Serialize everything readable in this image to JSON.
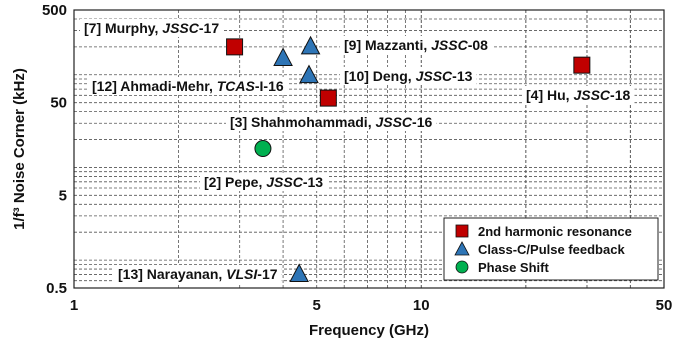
{
  "chart_data": {
    "type": "scatter",
    "title": "",
    "xlabel": "Frequency (GHz)",
    "ylabel": "1/f³ Noise Corner (kHz)",
    "x_scale": "log",
    "y_scale": "log",
    "xlim": [
      1,
      50
    ],
    "ylim": [
      0.5,
      500
    ],
    "x_ticks": [
      {
        "value": 1,
        "label": "1"
      },
      {
        "value": 5,
        "label": "5"
      },
      {
        "value": 10,
        "label": "10"
      },
      {
        "value": 50,
        "label": "50"
      }
    ],
    "y_ticks": [
      {
        "value": 0.5,
        "label": "0.5"
      },
      {
        "value": 5,
        "label": "5"
      },
      {
        "value": 50,
        "label": "50"
      },
      {
        "value": 500,
        "label": "500"
      }
    ],
    "grid": true,
    "legend_position": "bottom-right",
    "series": [
      {
        "name": "2nd harmonic resonance",
        "color": "#c00000",
        "marker": "square",
        "points": [
          {
            "x": 2.9,
            "y": 200
          },
          {
            "x": 5.4,
            "y": 56
          },
          {
            "x": 29,
            "y": 127
          }
        ]
      },
      {
        "name": "Class-C/Pulse feedback",
        "color": "#2e75b6",
        "marker": "triangle",
        "points": [
          {
            "x": 4.8,
            "y": 200
          },
          {
            "x": 4.0,
            "y": 150
          },
          {
            "x": 4.75,
            "y": 98
          },
          {
            "x": 4.45,
            "y": 0.7
          }
        ]
      },
      {
        "name": "Phase Shift",
        "color": "#00b050",
        "marker": "circle",
        "points": [
          {
            "x": 3.5,
            "y": 16
          }
        ]
      }
    ],
    "annotations": [
      {
        "id": "murphy",
        "ref": "[7] Murphy, ",
        "venue": "JSSC",
        "year": "-17"
      },
      {
        "id": "mazzanti",
        "ref": "[9] Mazzanti, ",
        "venue": "JSSC",
        "year": "-08"
      },
      {
        "id": "ahmadi",
        "ref": "[12] Ahmadi-Mehr, ",
        "venue": "TCAS",
        "year": "-I-16"
      },
      {
        "id": "deng",
        "ref": "[10] Deng, ",
        "venue": "JSSC",
        "year": "-13"
      },
      {
        "id": "hu",
        "ref": "[4] Hu, ",
        "venue": "JSSC",
        "year": "-18"
      },
      {
        "id": "shah",
        "ref": "[3] Shahmohammadi, ",
        "venue": "JSSC",
        "year": "-16"
      },
      {
        "id": "pepe",
        "ref": "[2] Pepe, ",
        "venue": "JSSC",
        "year": "-13"
      },
      {
        "id": "narayanan",
        "ref": "[13] Narayanan, ",
        "venue": "VLSI",
        "year": "-17"
      }
    ]
  }
}
